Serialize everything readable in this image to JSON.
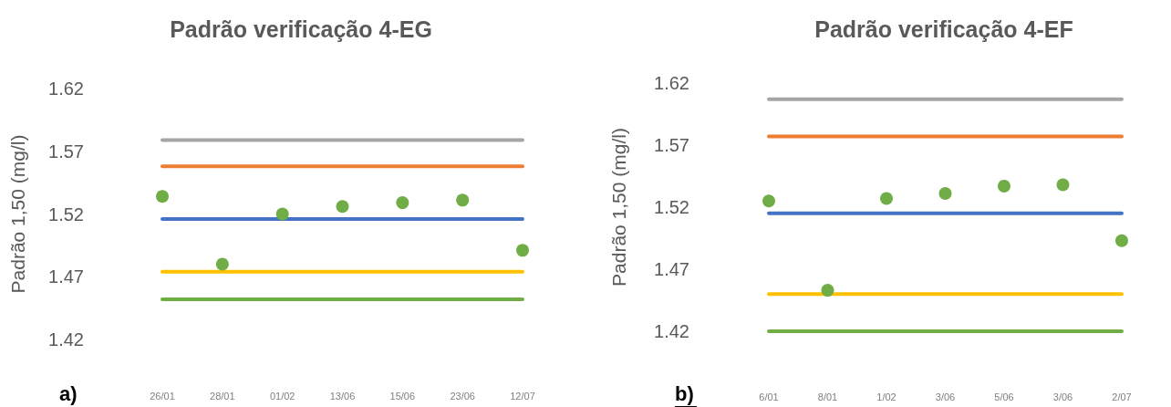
{
  "chart_data": [
    {
      "type": "scatter",
      "title": "Padrão verificação 4-EG",
      "ylabel": "Padrão 1,50 (mg/l)",
      "annotations": [
        "a)"
      ],
      "categories": [
        "26/01",
        "28/01",
        "01/02",
        "13/06",
        "15/06",
        "23/06",
        "12/07"
      ],
      "series": [
        {
          "type": "line",
          "marker": "none",
          "color": "#a5a5a5",
          "values": [
            1.579,
            1.579,
            1.579,
            1.579,
            1.579,
            1.579,
            1.579
          ]
        },
        {
          "type": "line",
          "marker": "none",
          "color": "#ed7d31",
          "values": [
            1.558,
            1.558,
            1.558,
            1.558,
            1.558,
            1.558,
            1.558
          ]
        },
        {
          "type": "line",
          "marker": "none",
          "color": "#4472c4",
          "values": [
            1.516,
            1.516,
            1.516,
            1.516,
            1.516,
            1.516,
            1.516
          ]
        },
        {
          "type": "line",
          "marker": "none",
          "color": "#ffc000",
          "values": [
            1.474,
            1.474,
            1.474,
            1.474,
            1.474,
            1.474,
            1.474
          ]
        },
        {
          "type": "line",
          "marker": "none",
          "color": "#70ad47",
          "values": [
            1.452,
            1.452,
            1.452,
            1.452,
            1.452,
            1.452,
            1.452
          ]
        },
        {
          "marker": "circle",
          "color": "#70ad47",
          "values": [
            1.534,
            1.48,
            1.52,
            1.526,
            1.529,
            1.531,
            1.491
          ]
        }
      ],
      "ylim": [
        1.42,
        1.62
      ],
      "yticks": [
        1.42,
        1.47,
        1.52,
        1.57,
        1.62
      ],
      "grid": false
    },
    {
      "type": "scatter",
      "title": "Padrão verificação 4-EF",
      "ylabel": "Padrão 1,50 (mg/l)",
      "annotations": [
        "b)"
      ],
      "categories": [
        "6/01",
        "8/01",
        "1/02",
        "3/06",
        "5/06",
        "3/06",
        "2/07"
      ],
      "series": [
        {
          "type": "line",
          "marker": "none",
          "color": "#a5a5a5",
          "values": [
            1.607,
            1.607,
            1.607,
            1.607,
            1.607,
            1.607,
            1.607
          ]
        },
        {
          "type": "line",
          "marker": "none",
          "color": "#ed7d31",
          "values": [
            1.577,
            1.577,
            1.577,
            1.577,
            1.577,
            1.577,
            1.577
          ]
        },
        {
          "type": "line",
          "marker": "none",
          "color": "#4472c4",
          "values": [
            1.515,
            1.515,
            1.515,
            1.515,
            1.515,
            1.515,
            1.515
          ]
        },
        {
          "type": "line",
          "marker": "none",
          "color": "#ffc000",
          "values": [
            1.45,
            1.45,
            1.45,
            1.45,
            1.45,
            1.45,
            1.45
          ]
        },
        {
          "type": "line",
          "marker": "none",
          "color": "#70ad47",
          "values": [
            1.42,
            1.42,
            1.42,
            1.42,
            1.42,
            1.42,
            1.42
          ]
        },
        {
          "marker": "circle",
          "color": "#70ad47",
          "values": [
            1.525,
            1.453,
            1.527,
            1.531,
            1.537,
            1.538,
            1.493
          ]
        }
      ],
      "ylim": [
        1.42,
        1.62
      ],
      "yticks": [
        1.42,
        1.47,
        1.52,
        1.57,
        1.62
      ],
      "grid": false
    }
  ]
}
